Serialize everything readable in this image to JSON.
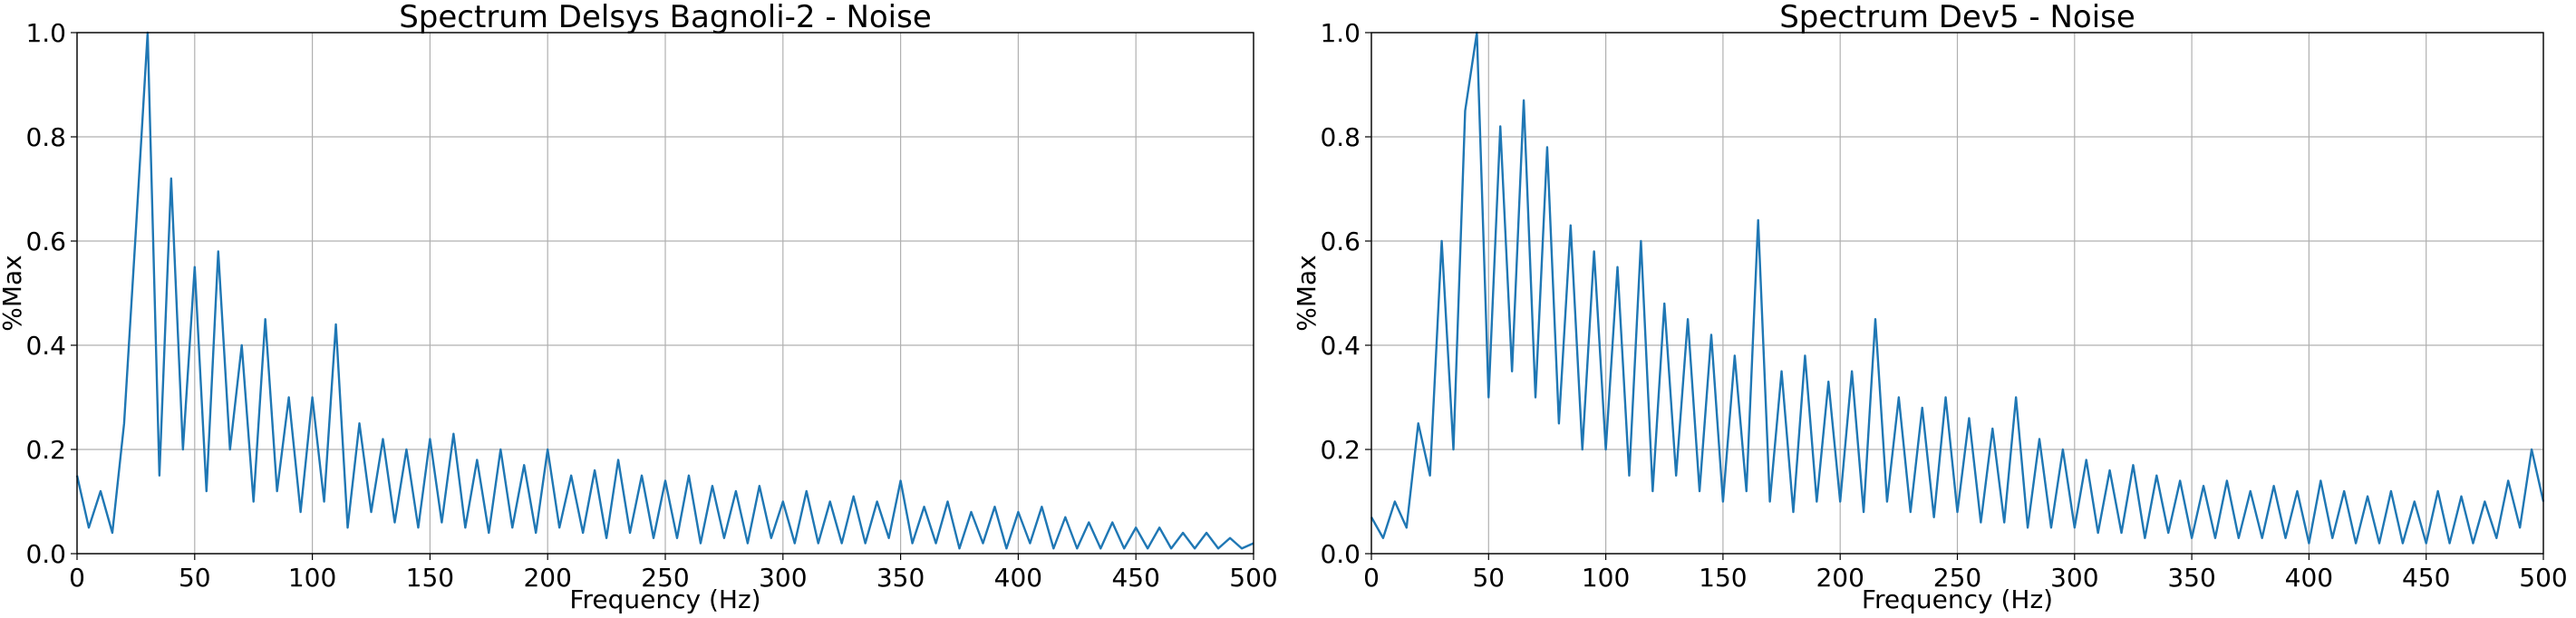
{
  "chart_data": [
    {
      "type": "line",
      "title": "Spectrum Delsys Bagnoli-2 - Noise",
      "xlabel": "Frequency (Hz)",
      "ylabel": "%Max",
      "color": "#1f77b4",
      "grid": true,
      "xlim": [
        0,
        500
      ],
      "ylim": [
        0,
        1
      ],
      "xticks": [
        0,
        50,
        100,
        150,
        200,
        250,
        300,
        350,
        400,
        450,
        500
      ],
      "yticks": [
        {
          "value": 0,
          "label": "0.0"
        },
        0.2,
        0.4,
        0.6,
        0.8,
        {
          "value": 1,
          "label": "1.0"
        }
      ],
      "x": [
        0,
        5,
        10,
        15,
        20,
        25,
        30,
        35,
        40,
        45,
        50,
        55,
        60,
        65,
        70,
        75,
        80,
        85,
        90,
        95,
        100,
        105,
        110,
        115,
        120,
        125,
        130,
        135,
        140,
        145,
        150,
        155,
        160,
        165,
        170,
        175,
        180,
        185,
        190,
        195,
        200,
        205,
        210,
        215,
        220,
        225,
        230,
        235,
        240,
        245,
        250,
        255,
        260,
        265,
        270,
        275,
        280,
        285,
        290,
        295,
        300,
        305,
        310,
        315,
        320,
        325,
        330,
        335,
        340,
        345,
        350,
        355,
        360,
        365,
        370,
        375,
        380,
        385,
        390,
        395,
        400,
        405,
        410,
        415,
        420,
        425,
        430,
        435,
        440,
        445,
        450,
        455,
        460,
        465,
        470,
        475,
        480,
        485,
        490,
        495,
        500
      ],
      "values": [
        0.15,
        0.05,
        0.12,
        0.04,
        0.25,
        0.62,
        1.0,
        0.15,
        0.72,
        0.2,
        0.55,
        0.12,
        0.58,
        0.2,
        0.4,
        0.1,
        0.45,
        0.12,
        0.3,
        0.08,
        0.3,
        0.1,
        0.44,
        0.05,
        0.25,
        0.08,
        0.22,
        0.06,
        0.2,
        0.05,
        0.22,
        0.06,
        0.23,
        0.05,
        0.18,
        0.04,
        0.2,
        0.05,
        0.17,
        0.04,
        0.2,
        0.05,
        0.15,
        0.04,
        0.16,
        0.03,
        0.18,
        0.04,
        0.15,
        0.03,
        0.14,
        0.03,
        0.15,
        0.02,
        0.13,
        0.03,
        0.12,
        0.02,
        0.13,
        0.03,
        0.1,
        0.02,
        0.12,
        0.02,
        0.1,
        0.02,
        0.11,
        0.02,
        0.1,
        0.03,
        0.14,
        0.02,
        0.09,
        0.02,
        0.1,
        0.01,
        0.08,
        0.02,
        0.09,
        0.01,
        0.08,
        0.02,
        0.09,
        0.01,
        0.07,
        0.01,
        0.06,
        0.01,
        0.06,
        0.01,
        0.05,
        0.01,
        0.05,
        0.01,
        0.04,
        0.01,
        0.04,
        0.01,
        0.03,
        0.01,
        0.02
      ]
    },
    {
      "type": "line",
      "title": "Spectrum Dev5 - Noise",
      "xlabel": "Frequency (Hz)",
      "ylabel": "%Max",
      "color": "#1f77b4",
      "grid": true,
      "xlim": [
        0,
        500
      ],
      "ylim": [
        0,
        1
      ],
      "xticks": [
        0,
        50,
        100,
        150,
        200,
        250,
        300,
        350,
        400,
        450,
        500
      ],
      "yticks": [
        {
          "value": 0,
          "label": "0.0"
        },
        0.2,
        0.4,
        0.6,
        0.8,
        {
          "value": 1,
          "label": "1.0"
        }
      ],
      "x": [
        0,
        5,
        10,
        15,
        20,
        25,
        30,
        35,
        40,
        45,
        50,
        55,
        60,
        65,
        70,
        75,
        80,
        85,
        90,
        95,
        100,
        105,
        110,
        115,
        120,
        125,
        130,
        135,
        140,
        145,
        150,
        155,
        160,
        165,
        170,
        175,
        180,
        185,
        190,
        195,
        200,
        205,
        210,
        215,
        220,
        225,
        230,
        235,
        240,
        245,
        250,
        255,
        260,
        265,
        270,
        275,
        280,
        285,
        290,
        295,
        300,
        305,
        310,
        315,
        320,
        325,
        330,
        335,
        340,
        345,
        350,
        355,
        360,
        365,
        370,
        375,
        380,
        385,
        390,
        395,
        400,
        405,
        410,
        415,
        420,
        425,
        430,
        435,
        440,
        445,
        450,
        455,
        460,
        465,
        470,
        475,
        480,
        485,
        490,
        495,
        500
      ],
      "values": [
        0.07,
        0.03,
        0.1,
        0.05,
        0.25,
        0.15,
        0.6,
        0.2,
        0.85,
        1.0,
        0.3,
        0.82,
        0.35,
        0.87,
        0.3,
        0.78,
        0.25,
        0.63,
        0.2,
        0.58,
        0.2,
        0.55,
        0.15,
        0.6,
        0.12,
        0.48,
        0.15,
        0.45,
        0.12,
        0.42,
        0.1,
        0.38,
        0.12,
        0.64,
        0.1,
        0.35,
        0.08,
        0.38,
        0.1,
        0.33,
        0.1,
        0.35,
        0.08,
        0.45,
        0.1,
        0.3,
        0.08,
        0.28,
        0.07,
        0.3,
        0.08,
        0.26,
        0.06,
        0.24,
        0.06,
        0.3,
        0.05,
        0.22,
        0.05,
        0.2,
        0.05,
        0.18,
        0.04,
        0.16,
        0.04,
        0.17,
        0.03,
        0.15,
        0.04,
        0.14,
        0.03,
        0.13,
        0.03,
        0.14,
        0.03,
        0.12,
        0.03,
        0.13,
        0.03,
        0.12,
        0.02,
        0.14,
        0.03,
        0.12,
        0.02,
        0.11,
        0.02,
        0.12,
        0.02,
        0.1,
        0.02,
        0.12,
        0.02,
        0.11,
        0.02,
        0.1,
        0.03,
        0.14,
        0.05,
        0.2,
        0.1
      ]
    }
  ]
}
